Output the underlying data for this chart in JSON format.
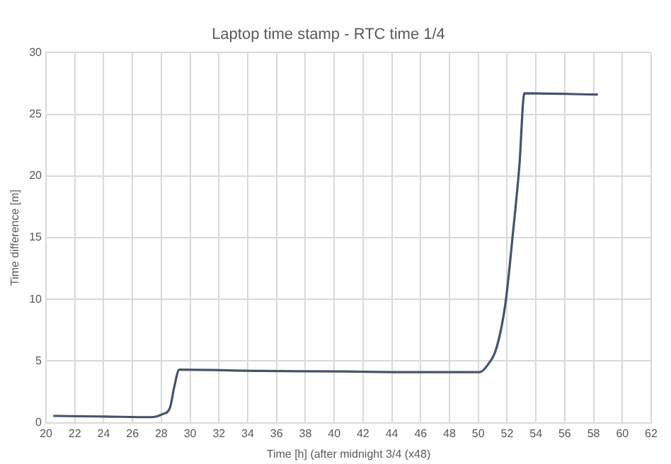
{
  "chart_data": {
    "type": "line",
    "title": "Laptop time stamp - RTC time 1/4",
    "xlabel": "Time [h] (after midnight 3/4 (x48)",
    "ylabel": "Time difference [m]",
    "series": [
      {
        "color": "#44546a",
        "x": [
          20.5,
          24,
          27.3,
          28.1,
          28.6,
          28.9,
          29.25,
          35,
          40.6,
          45,
          50.1,
          50.6,
          51.3,
          51.9,
          52.4,
          52.85,
          53.2,
          58.3
        ],
        "values": [
          0.55,
          0.5,
          0.45,
          0.7,
          1.2,
          2.9,
          4.3,
          4.2,
          4.15,
          4.1,
          4.1,
          4.6,
          6.2,
          9.8,
          15.3,
          20.8,
          26.7,
          26.6
        ]
      }
    ],
    "xlim": [
      20,
      62
    ],
    "xticks": [
      20,
      22,
      24,
      26,
      28,
      30,
      32,
      34,
      36,
      38,
      40,
      42,
      44,
      46,
      48,
      50,
      52,
      54,
      56,
      58,
      60,
      62
    ],
    "ylim": [
      0,
      30
    ],
    "yticks": [
      0,
      5,
      10,
      15,
      20,
      25,
      30
    ],
    "grid": true,
    "legend": false,
    "marker": "none",
    "line_style": "solid"
  }
}
